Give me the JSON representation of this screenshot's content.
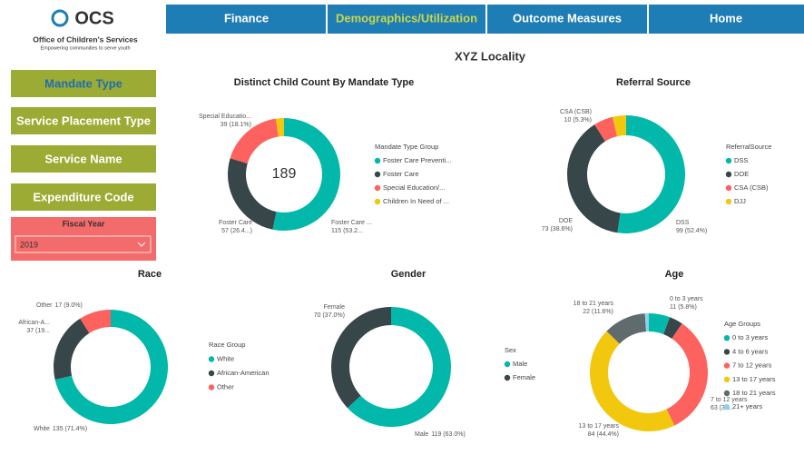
{
  "header": {
    "logo": "OCS",
    "org_name": "Office of Children's Services",
    "tagline": "Empowering communities to serve youth"
  },
  "nav": {
    "items": [
      "Finance",
      "Demographics/Utilization",
      "Outcome Measures",
      "Home"
    ],
    "active": 1
  },
  "sidebar": {
    "buttons": [
      "Mandate Type",
      "Service Placement Type",
      "Service Name",
      "Expenditure Code"
    ],
    "active": 0,
    "filter": {
      "label": "Fiscal Year",
      "value": "2019"
    }
  },
  "page_title": "XYZ Locality",
  "chart_data": [
    {
      "type": "pie",
      "title": "Distinct Child Count By Mandate Type",
      "center_text": "189",
      "legend_title": "Mandate Type Group",
      "categories": [
        "Foster Care Preventi...",
        "Foster Care",
        "Special Education/...",
        "Children In Need of ..."
      ],
      "values": [
        115,
        57,
        39,
        5
      ],
      "colors": [
        "#01b8aa",
        "#374649",
        "#fd625e",
        "#f2c80f"
      ],
      "label_names": [
        "Foster Care ...",
        "Foster Care",
        "Special Educatio...",
        null
      ],
      "value_labels": [
        "115 (53.2...",
        "57 (26.4...)",
        "39 (18.1%)",
        null
      ]
    },
    {
      "type": "pie",
      "title": "Referral Source",
      "legend_title": "ReferralSource",
      "categories": [
        "DSS",
        "DOE",
        "CSA (CSB)",
        "DJJ"
      ],
      "values": [
        99,
        73,
        10,
        7
      ],
      "colors": [
        "#01b8aa",
        "#374649",
        "#fd625e",
        "#f2c80f"
      ],
      "label_names": [
        "DSS",
        "DOE",
        "CSA (CSB)",
        null
      ],
      "value_labels": [
        "99 (52.4%)",
        "73 (38.6%)",
        "10 (5.3%)",
        null
      ]
    },
    {
      "type": "pie",
      "title": "Race",
      "legend_title": "Race Group",
      "categories": [
        "White",
        "African-American",
        "Other"
      ],
      "values": [
        135,
        37,
        17
      ],
      "colors": [
        "#01b8aa",
        "#374649",
        "#fd625e"
      ],
      "label_names": [
        "White",
        "African-A...",
        "Other"
      ],
      "value_labels": [
        "135 (71.4%)",
        "37 (19...",
        "17 (9.0%)"
      ]
    },
    {
      "type": "pie",
      "title": "Gender",
      "legend_title": "Sex",
      "categories": [
        "Male",
        "Female"
      ],
      "values": [
        119,
        70
      ],
      "colors": [
        "#01b8aa",
        "#374649"
      ],
      "label_names": [
        "Male",
        "Female"
      ],
      "value_labels": [
        "119 (63.0%)",
        "70 (37.0%)"
      ]
    },
    {
      "type": "pie",
      "title": "Age",
      "legend_title": "Age Groups",
      "categories": [
        "0 to 3 years",
        "4 to 6 years",
        "7 to 12 years",
        "13 to 17 years",
        "18 to 21 years",
        "21+ years"
      ],
      "values": [
        11,
        7,
        63,
        84,
        22,
        2
      ],
      "colors": [
        "#01b8aa",
        "#374649",
        "#fd625e",
        "#f2c80f",
        "#5f6b6d",
        "#8ad4eb"
      ],
      "label_names": [
        "0 to 3 years",
        null,
        "7 to 12 years",
        "13 to 17 years",
        "18 to 21 years",
        null
      ],
      "value_labels": [
        "11 (5.8%)",
        null,
        "63 (33...",
        "84 (44.4%)",
        "22 (11.6%)",
        null
      ]
    }
  ]
}
